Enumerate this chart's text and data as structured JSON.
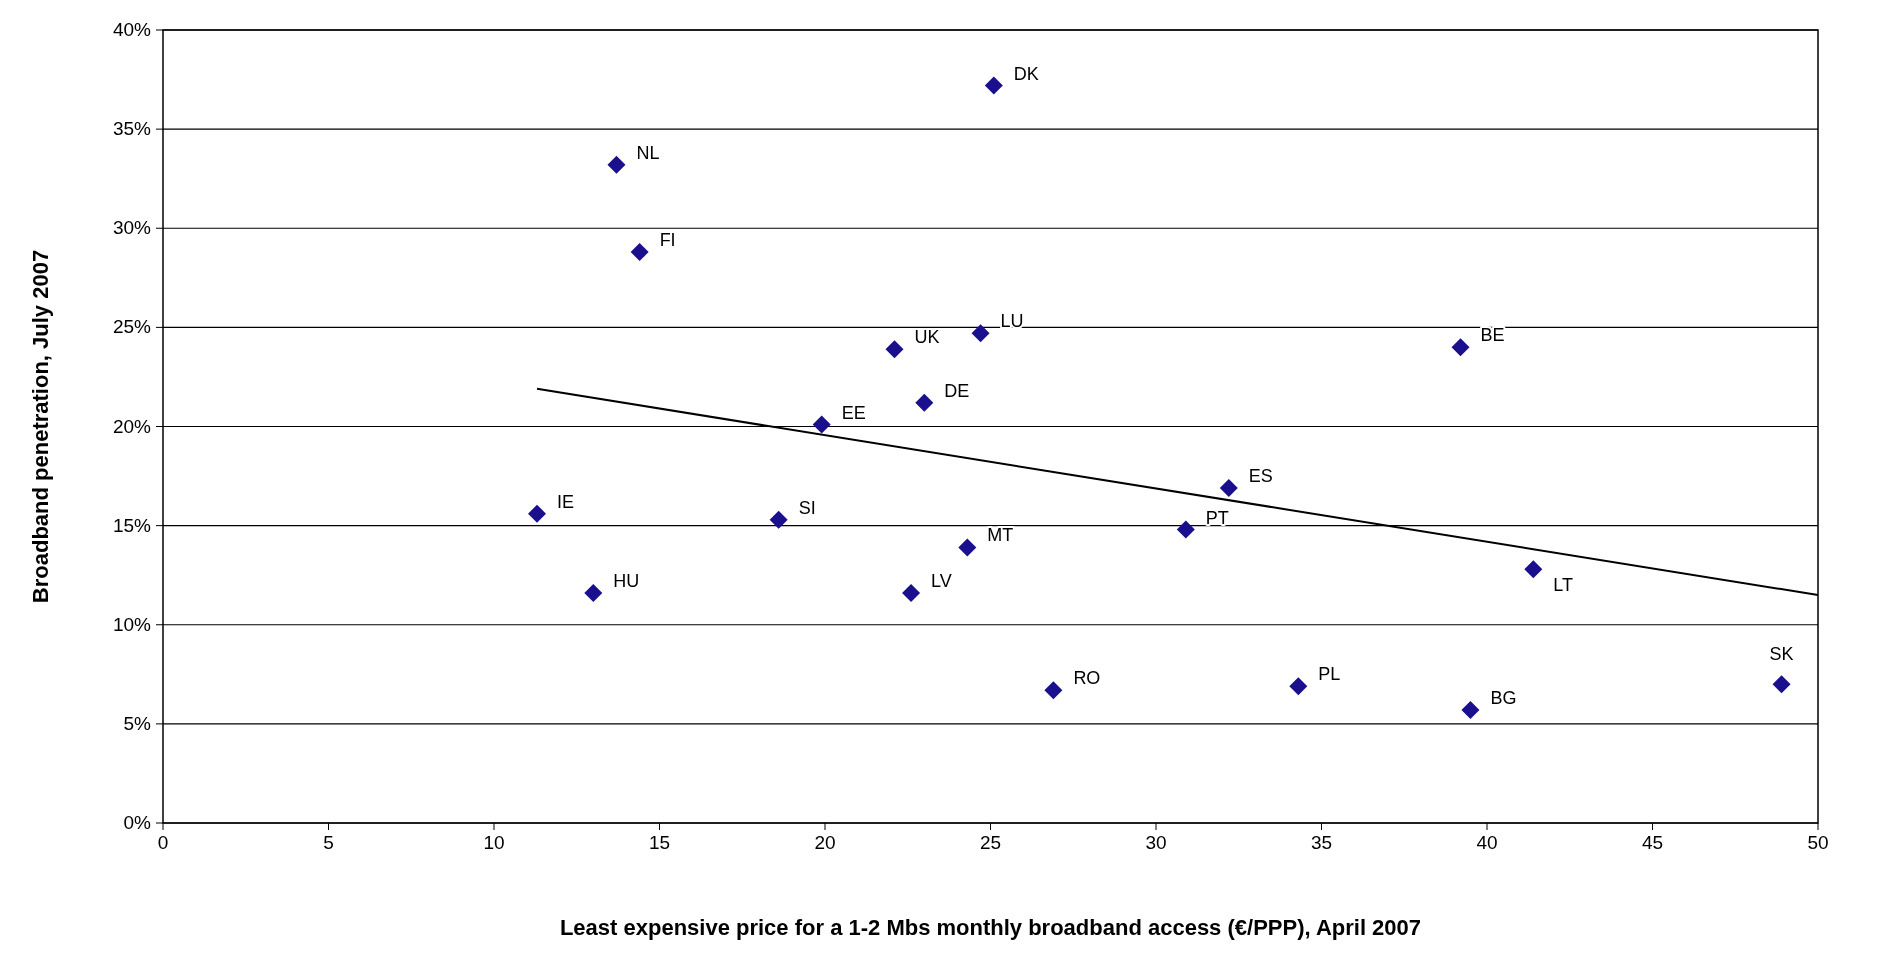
{
  "chart_data": {
    "type": "scatter",
    "xlabel": "Least expensive price for a 1-2 Mbs monthly broadband access (€/PPP), April 2007",
    "ylabel": "Broadband penetration, July 2007",
    "xlim": [
      0,
      50
    ],
    "xticks": [
      0,
      5,
      10,
      15,
      20,
      25,
      30,
      35,
      40,
      45,
      50
    ],
    "ylim": [
      0,
      40
    ],
    "yticks": [
      {
        "value": 0,
        "label": "0%"
      },
      {
        "value": 5,
        "label": "5%"
      },
      {
        "value": 10,
        "label": "10%"
      },
      {
        "value": 15,
        "label": "15%"
      },
      {
        "value": 20,
        "label": "20%"
      },
      {
        "value": 25,
        "label": "25%"
      },
      {
        "value": 30,
        "label": "30%"
      },
      {
        "value": 35,
        "label": "35%"
      },
      {
        "value": 40,
        "label": "40%"
      }
    ],
    "grid": "y",
    "series": [
      {
        "marker": "diamond",
        "color": "#1a0f8c",
        "x": [
          25.1,
          13.7,
          14.4,
          22.1,
          24.7,
          39.2,
          19.9,
          23.0,
          32.2,
          11.3,
          18.6,
          24.3,
          30.9,
          41.4,
          13.0,
          22.6,
          26.9,
          34.3,
          39.5,
          48.9
        ],
        "values": [
          37.2,
          33.2,
          28.8,
          23.9,
          24.7,
          24.0,
          20.1,
          21.2,
          16.9,
          15.6,
          15.3,
          13.9,
          14.8,
          12.8,
          11.6,
          11.6,
          6.7,
          6.9,
          5.7,
          7.0
        ]
      },
      {
        "type": "line",
        "color": "#000000",
        "x": [
          11.3,
          50
        ],
        "values": [
          21.9,
          11.5
        ]
      }
    ],
    "annotations": [
      {
        "text": "DK",
        "x": 25.1,
        "y": 37.2
      },
      {
        "text": "NL",
        "x": 13.7,
        "y": 33.2
      },
      {
        "text": "FI",
        "x": 14.4,
        "y": 28.8
      },
      {
        "text": "UK",
        "x": 22.1,
        "y": 23.9
      },
      {
        "text": "LU",
        "x": 24.7,
        "y": 24.7
      },
      {
        "text": "BE",
        "x": 39.2,
        "y": 24.0
      },
      {
        "text": "EE",
        "x": 19.9,
        "y": 20.1
      },
      {
        "text": "DE",
        "x": 23.0,
        "y": 21.2
      },
      {
        "text": "ES",
        "x": 32.2,
        "y": 16.9
      },
      {
        "text": "IE",
        "x": 11.3,
        "y": 15.6
      },
      {
        "text": "SI",
        "x": 18.6,
        "y": 15.3
      },
      {
        "text": "MT",
        "x": 24.3,
        "y": 13.9
      },
      {
        "text": "PT",
        "x": 30.9,
        "y": 14.8
      },
      {
        "text": "LT",
        "x": 41.4,
        "y": 12.8
      },
      {
        "text": "HU",
        "x": 13.0,
        "y": 11.6
      },
      {
        "text": "LV",
        "x": 22.6,
        "y": 11.6
      },
      {
        "text": "RO",
        "x": 26.9,
        "y": 6.7
      },
      {
        "text": "PL",
        "x": 34.3,
        "y": 6.9
      },
      {
        "text": "BG",
        "x": 39.5,
        "y": 5.7
      },
      {
        "text": "SK",
        "x": 48.9,
        "y": 7.0
      }
    ]
  }
}
